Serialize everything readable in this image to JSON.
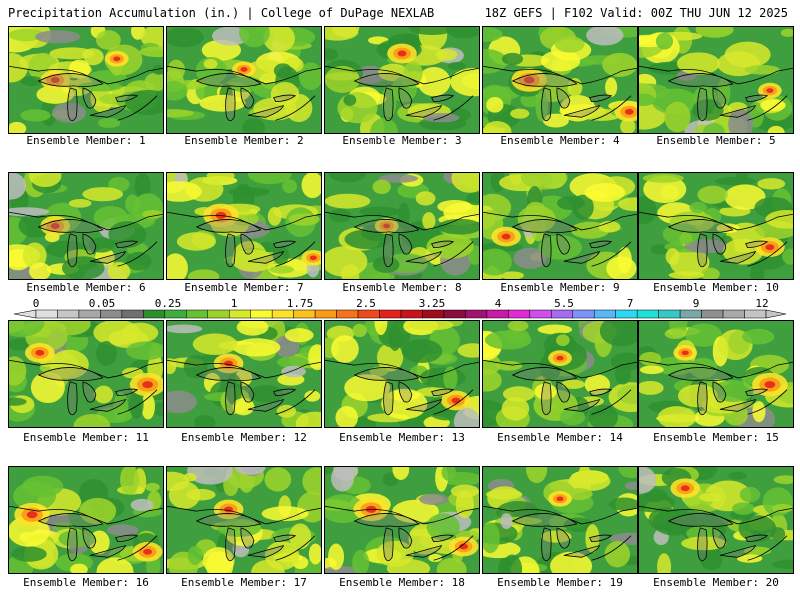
{
  "header": {
    "left_title": "Precipitation Accumulation (in.) | College of DuPage NEXLAB",
    "right_title": "18Z GEFS | F102 Valid: 00Z THU JUN 12 2025"
  },
  "panels": [
    {
      "label": "Ensemble Member: 1",
      "hot": [
        [
          0.3,
          0.5,
          0.25
        ],
        [
          0.7,
          0.3,
          0.2
        ]
      ]
    },
    {
      "label": "Ensemble Member: 2",
      "hot": [
        [
          0.5,
          0.4,
          0.2
        ]
      ]
    },
    {
      "label": "Ensemble Member: 3",
      "hot": [
        [
          0.5,
          0.25,
          0.25
        ]
      ]
    },
    {
      "label": "Ensemble Member: 4",
      "hot": [
        [
          0.3,
          0.5,
          0.3
        ],
        [
          0.95,
          0.8,
          0.25
        ]
      ]
    },
    {
      "label": "Ensemble Member: 5",
      "hot": [
        [
          0.85,
          0.6,
          0.2
        ]
      ]
    },
    {
      "label": "Ensemble Member: 6",
      "hot": [
        [
          0.3,
          0.5,
          0.25
        ]
      ]
    },
    {
      "label": "Ensemble Member: 7",
      "hot": [
        [
          0.35,
          0.4,
          0.3
        ],
        [
          0.95,
          0.8,
          0.2
        ]
      ]
    },
    {
      "label": "Ensemble Member: 8",
      "hot": [
        [
          0.4,
          0.5,
          0.2
        ]
      ]
    },
    {
      "label": "Ensemble Member: 9",
      "hot": [
        [
          0.15,
          0.6,
          0.25
        ]
      ]
    },
    {
      "label": "Ensemble Member: 10",
      "hot": [
        [
          0.85,
          0.7,
          0.25
        ]
      ]
    },
    {
      "label": "Ensemble Member: 11",
      "hot": [
        [
          0.9,
          0.6,
          0.3
        ],
        [
          0.2,
          0.3,
          0.25
        ]
      ]
    },
    {
      "label": "Ensemble Member: 12",
      "hot": [
        [
          0.4,
          0.4,
          0.25
        ]
      ]
    },
    {
      "label": "Ensemble Member: 13",
      "hot": [
        [
          0.85,
          0.75,
          0.25
        ]
      ]
    },
    {
      "label": "Ensemble Member: 14",
      "hot": [
        [
          0.5,
          0.35,
          0.2
        ]
      ]
    },
    {
      "label": "Ensemble Member: 15",
      "hot": [
        [
          0.85,
          0.6,
          0.3
        ],
        [
          0.3,
          0.3,
          0.2
        ]
      ]
    },
    {
      "label": "Ensemble Member: 16",
      "hot": [
        [
          0.15,
          0.45,
          0.3
        ],
        [
          0.9,
          0.8,
          0.25
        ]
      ]
    },
    {
      "label": "Ensemble Member: 17",
      "hot": [
        [
          0.4,
          0.4,
          0.25
        ]
      ]
    },
    {
      "label": "Ensemble Member: 18",
      "hot": [
        [
          0.3,
          0.4,
          0.3
        ],
        [
          0.9,
          0.75,
          0.25
        ]
      ]
    },
    {
      "label": "Ensemble Member: 19",
      "hot": [
        [
          0.5,
          0.3,
          0.2
        ]
      ]
    },
    {
      "label": "Ensemble Member: 20",
      "hot": [
        [
          0.3,
          0.2,
          0.25
        ]
      ]
    }
  ],
  "colorbar": {
    "labels": [
      "0",
      "0.05",
      "0.25",
      "1",
      "1.75",
      "2.5",
      "3.25",
      "4",
      "5.5",
      "7",
      "9",
      "12"
    ],
    "colors": [
      "#e0e0e0",
      "#c6c6c6",
      "#a8a8a8",
      "#8c8c8c",
      "#707070",
      "#2f8f2f",
      "#3fae3f",
      "#66c133",
      "#9ed32c",
      "#d7e92b",
      "#fbfb33",
      "#fde22a",
      "#fdc11e",
      "#fb9a14",
      "#f5731a",
      "#ee4a1e",
      "#e4221c",
      "#c8121e",
      "#a00c1e",
      "#8a0e3c",
      "#a0126f",
      "#c61aa8",
      "#e12ad3",
      "#d04fe8",
      "#a56cf2",
      "#7e93f7",
      "#58b8f7",
      "#2fd8f2",
      "#1de0d6",
      "#38c7c7",
      "#7aa8a8",
      "#8f8f8f",
      "#a9a9a9",
      "#c4c4c4"
    ]
  }
}
